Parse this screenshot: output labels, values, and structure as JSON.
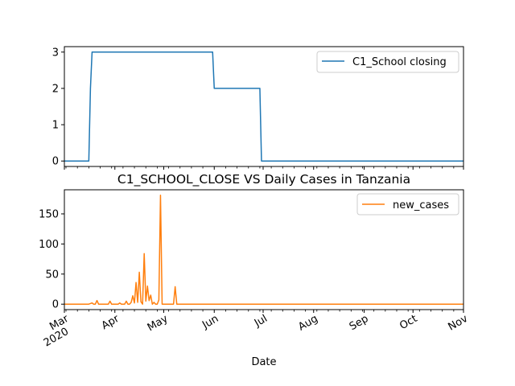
{
  "chart_data": [
    {
      "type": "line",
      "title": "",
      "xlabel": "",
      "ylabel": "",
      "xlim": [
        "2020-03-01",
        "2020-11-01"
      ],
      "ylim": [
        -0.15,
        3.15
      ],
      "yticks": [
        0,
        1,
        2,
        3
      ],
      "grid": false,
      "legend_position": "top-right",
      "series": [
        {
          "name": "C1_School closing",
          "color": "#1f77b4",
          "points": [
            [
              "2020-03-01",
              0
            ],
            [
              "2020-03-16",
              0
            ],
            [
              "2020-03-17",
              2
            ],
            [
              "2020-03-18",
              3
            ],
            [
              "2020-05-31",
              3
            ],
            [
              "2020-06-01",
              2
            ],
            [
              "2020-06-29",
              2
            ],
            [
              "2020-06-30",
              0
            ],
            [
              "2020-11-01",
              0
            ]
          ]
        }
      ]
    },
    {
      "type": "line",
      "title": "C1_SCHOOL_CLOSE VS Daily Cases in Tanzania",
      "xlabel": "Date",
      "ylabel": "",
      "xlim": [
        "2020-03-01",
        "2020-11-01"
      ],
      "ylim": [
        -9.05,
        190.05
      ],
      "yticks": [
        0,
        50,
        100,
        150
      ],
      "grid": false,
      "legend_position": "top-right",
      "x_month_ticks": [
        {
          "date": "2020-03-01",
          "label": "Mar",
          "year": "2020"
        },
        {
          "date": "2020-04-01",
          "label": "Apr"
        },
        {
          "date": "2020-05-01",
          "label": "May"
        },
        {
          "date": "2020-06-01",
          "label": "Jun"
        },
        {
          "date": "2020-07-01",
          "label": "Jul"
        },
        {
          "date": "2020-08-01",
          "label": "Aug"
        },
        {
          "date": "2020-09-01",
          "label": "Sep"
        },
        {
          "date": "2020-10-01",
          "label": "Oct"
        },
        {
          "date": "2020-11-01",
          "label": "Nov"
        }
      ],
      "series": [
        {
          "name": "new_cases",
          "color": "#ff7f0e",
          "points": [
            [
              "2020-03-01",
              0
            ],
            [
              "2020-03-16",
              0
            ],
            [
              "2020-03-17",
              1
            ],
            [
              "2020-03-18",
              2
            ],
            [
              "2020-03-19",
              0
            ],
            [
              "2020-03-20",
              0
            ],
            [
              "2020-03-21",
              6
            ],
            [
              "2020-03-22",
              0
            ],
            [
              "2020-03-28",
              0
            ],
            [
              "2020-03-29",
              5
            ],
            [
              "2020-03-30",
              0
            ],
            [
              "2020-04-03",
              0
            ],
            [
              "2020-04-04",
              2
            ],
            [
              "2020-04-05",
              0
            ],
            [
              "2020-04-07",
              0
            ],
            [
              "2020-04-08",
              5
            ],
            [
              "2020-04-09",
              0
            ],
            [
              "2020-04-10",
              0
            ],
            [
              "2020-04-11",
              3
            ],
            [
              "2020-04-12",
              14
            ],
            [
              "2020-04-13",
              2
            ],
            [
              "2020-04-14",
              36
            ],
            [
              "2020-04-15",
              3
            ],
            [
              "2020-04-16",
              53
            ],
            [
              "2020-04-17",
              4
            ],
            [
              "2020-04-18",
              0
            ],
            [
              "2020-04-19",
              84
            ],
            [
              "2020-04-20",
              5
            ],
            [
              "2020-04-21",
              30
            ],
            [
              "2020-04-22",
              6
            ],
            [
              "2020-04-23",
              15
            ],
            [
              "2020-04-24",
              0
            ],
            [
              "2020-04-25",
              3
            ],
            [
              "2020-04-26",
              0
            ],
            [
              "2020-04-27",
              0
            ],
            [
              "2020-04-28",
              7
            ],
            [
              "2020-04-29",
              181
            ],
            [
              "2020-04-30",
              0
            ],
            [
              "2020-05-06",
              0
            ],
            [
              "2020-05-07",
              0
            ],
            [
              "2020-05-08",
              29
            ],
            [
              "2020-05-09",
              0
            ],
            [
              "2020-11-01",
              0
            ]
          ]
        }
      ]
    }
  ]
}
